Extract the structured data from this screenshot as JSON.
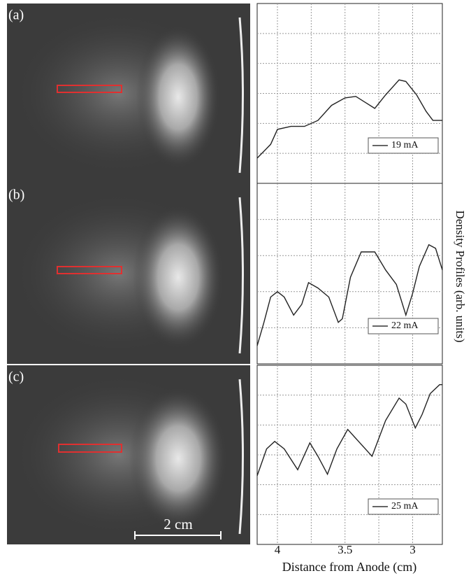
{
  "y_label": "Density Profiles (arb. units)",
  "images": [
    {
      "label": "(a)"
    },
    {
      "label": "(b)"
    },
    {
      "label": "(c)",
      "scale_bar": "2 cm"
    }
  ],
  "chart_data": [
    {
      "type": "line",
      "x": [
        4.15,
        4.05,
        4.0,
        3.9,
        3.8,
        3.7,
        3.6,
        3.5,
        3.42,
        3.35,
        3.28,
        3.2,
        3.1,
        3.05,
        2.97,
        2.9,
        2.85,
        2.78
      ],
      "series": [
        {
          "name": "19 mA",
          "color": "#222222",
          "values": [
            0.84,
            1.3,
            1.8,
            1.9,
            1.9,
            2.1,
            2.6,
            2.85,
            2.9,
            2.7,
            2.5,
            2.95,
            3.45,
            3.4,
            2.95,
            2.4,
            2.1,
            2.1
          ]
        }
      ],
      "xlim": [
        4.15,
        2.78
      ],
      "xticks": [
        4,
        3.75,
        3.5,
        3.25,
        3
      ],
      "ylim": [
        0,
        6
      ],
      "yticks": [
        1,
        2,
        3,
        4,
        5
      ],
      "grid": true,
      "xtick_labels": false
    },
    {
      "type": "line",
      "x": [
        4.15,
        4.1,
        4.05,
        4.0,
        3.95,
        3.88,
        3.82,
        3.77,
        3.7,
        3.62,
        3.55,
        3.52,
        3.46,
        3.38,
        3.28,
        3.2,
        3.12,
        3.05,
        3.0,
        2.95,
        2.88,
        2.83,
        2.78
      ],
      "series": [
        {
          "name": "22 mA",
          "color": "#222222",
          "values": [
            0.5,
            1.15,
            1.85,
            2.0,
            1.85,
            1.35,
            1.65,
            2.25,
            2.1,
            1.85,
            1.15,
            1.25,
            2.4,
            3.1,
            3.1,
            2.6,
            2.2,
            1.35,
            1.95,
            2.7,
            3.3,
            3.2,
            2.6
          ]
        }
      ],
      "xlim": [
        4.15,
        2.78
      ],
      "xticks": [
        4,
        3.75,
        3.5,
        3.25,
        3
      ],
      "ylim": [
        0,
        5
      ],
      "yticks": [
        1,
        2,
        3,
        4
      ],
      "grid": true,
      "xtick_labels": false
    },
    {
      "type": "line",
      "x_label": "Distance from Anode (cm)",
      "x": [
        4.15,
        4.08,
        4.02,
        3.95,
        3.85,
        3.76,
        3.7,
        3.63,
        3.56,
        3.48,
        3.4,
        3.3,
        3.2,
        3.1,
        3.05,
        2.98,
        2.93,
        2.87,
        2.8,
        2.78
      ],
      "series": [
        {
          "name": "25 mA",
          "color": "#222222",
          "values": [
            2.3,
            3.2,
            3.45,
            3.2,
            2.5,
            3.4,
            2.95,
            2.35,
            3.2,
            3.85,
            3.45,
            2.95,
            4.15,
            4.9,
            4.7,
            3.9,
            4.35,
            5.05,
            5.35,
            5.35
          ]
        }
      ],
      "xlim": [
        4.15,
        2.78
      ],
      "xticks": [
        4,
        {
          "value": 3.75,
          "label": null
        },
        3.5,
        {
          "value": 3.25,
          "label": null
        },
        3
      ],
      "ylim": [
        0,
        6
      ],
      "yticks": [
        1,
        2,
        3,
        4,
        5
      ],
      "grid": true,
      "xtick_labels": true
    }
  ]
}
